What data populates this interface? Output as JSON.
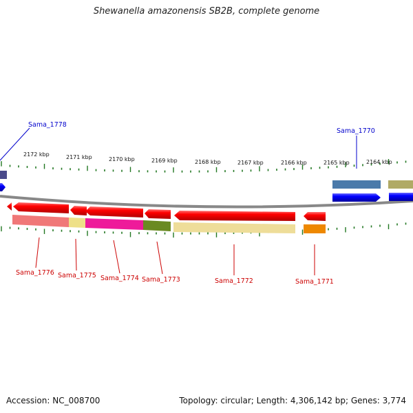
{
  "title": "Shewanella amazonensis SB2B, complete genome",
  "footer": {
    "accession": "Accession: NC_008700",
    "topology": "Topology: circular; Length: 4,306,142 bp; Genes: 3,774"
  },
  "scale_labels": [
    "2172 kbp",
    "2171 kbp",
    "2170 kbp",
    "2169 kbp",
    "2168 kbp",
    "2167 kbp",
    "2166 kbp",
    "2165 kbp",
    "2164 kbp"
  ],
  "forward_genes": [
    {
      "name": "Sama_1778",
      "color": "#0000ee"
    },
    {
      "name": "Sama_1770",
      "color": "#0000ee"
    }
  ],
  "reverse_genes": [
    {
      "name": "Sama_1776",
      "color": "#ee0000"
    },
    {
      "name": "Sama_1775",
      "color": "#ee0000"
    },
    {
      "name": "Sama_1774",
      "color": "#ee0000"
    },
    {
      "name": "Sama_1773",
      "color": "#ee0000"
    },
    {
      "name": "Sama_1772",
      "color": "#ee0000"
    },
    {
      "name": "Sama_1771",
      "color": "#ee0000"
    }
  ],
  "colors": {
    "backbone": "#888888",
    "tick": "#227722",
    "gene_forward": "#0000ee",
    "gene_reverse": "#ee0000",
    "label_forward": "#0000cc",
    "label_reverse": "#cc0000"
  }
}
